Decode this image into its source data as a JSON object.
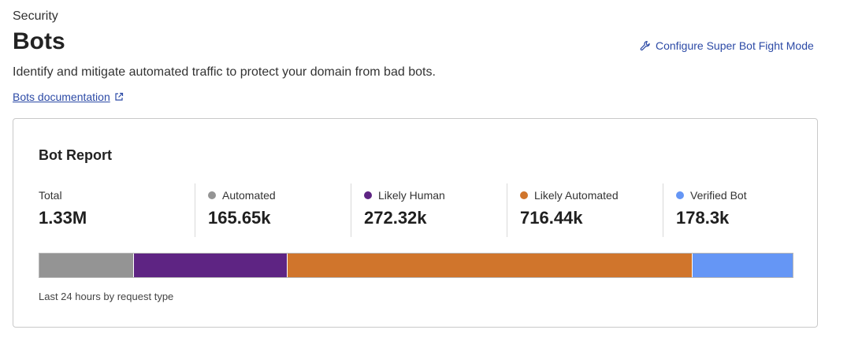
{
  "header": {
    "breadcrumb": "Security",
    "title": "Bots",
    "description": "Identify and mitigate automated traffic to protect your domain from bad bots.",
    "doc_link": "Bots documentation",
    "configure_link": "Configure Super Bot Fight Mode",
    "configure_icon": "wrench-icon",
    "doc_icon": "external-link-icon"
  },
  "report": {
    "title": "Bot Report",
    "caption": "Last 24 hours by request type",
    "total": {
      "label": "Total",
      "value": "1.33M"
    },
    "categories": [
      {
        "label": "Automated",
        "value": "165.65k",
        "count": 165.65,
        "color": "#949494"
      },
      {
        "label": "Likely Human",
        "value": "272.32k",
        "count": 272.32,
        "color": "#5e2483"
      },
      {
        "label": "Likely Automated",
        "value": "716.44k",
        "count": 716.44,
        "color": "#d0752c"
      },
      {
        "label": "Verified Bot",
        "value": "178.3k",
        "count": 178.3,
        "color": "#6596f5"
      }
    ]
  }
}
